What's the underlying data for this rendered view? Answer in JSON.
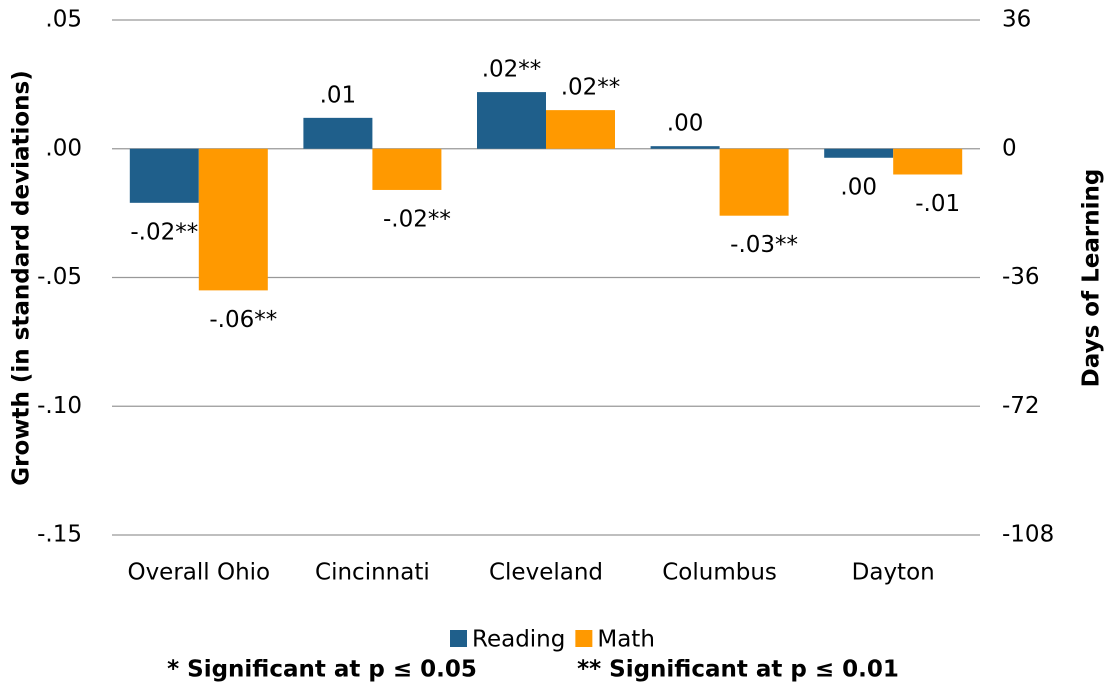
{
  "chart_data": {
    "type": "bar",
    "y_label": "Growth (in standard deviations)",
    "y2_label": "Days of Learning",
    "categories": [
      "Overall Ohio",
      "Cincinnati",
      "Cleveland",
      "Columbus",
      "Dayton"
    ],
    "series": [
      {
        "name": "Reading",
        "color": "#1f5f8b",
        "values": [
          -0.021,
          0.012,
          0.022,
          0.001,
          -0.0035
        ],
        "value_labels": [
          "-.02**",
          ".01",
          ".02**",
          ".00",
          ".00"
        ]
      },
      {
        "name": "Math",
        "color": "#ff9900",
        "values": [
          -0.055,
          -0.016,
          0.015,
          -0.026,
          -0.01
        ],
        "value_labels": [
          "-.06**",
          "-.02**",
          ".02**",
          "-.03**",
          "-.01"
        ]
      }
    ],
    "ylim": [
      -0.15,
      0.05
    ],
    "yticks": [
      {
        "value": -0.15,
        "label": "-.15"
      },
      {
        "value": -0.1,
        "label": "-.10"
      },
      {
        "value": -0.05,
        "label": "-.05"
      },
      {
        "value": 0,
        "label": ".00"
      },
      {
        "value": 0.05,
        "label": ".05"
      }
    ],
    "y2lim": [
      -108,
      36
    ],
    "y2ticks": [
      -108,
      -72,
      -36,
      0,
      36
    ],
    "grid": true,
    "legend": "bottom",
    "notes": [
      "* Significant at p ≤ 0.05",
      "** Significant at p ≤ 0.01"
    ]
  }
}
